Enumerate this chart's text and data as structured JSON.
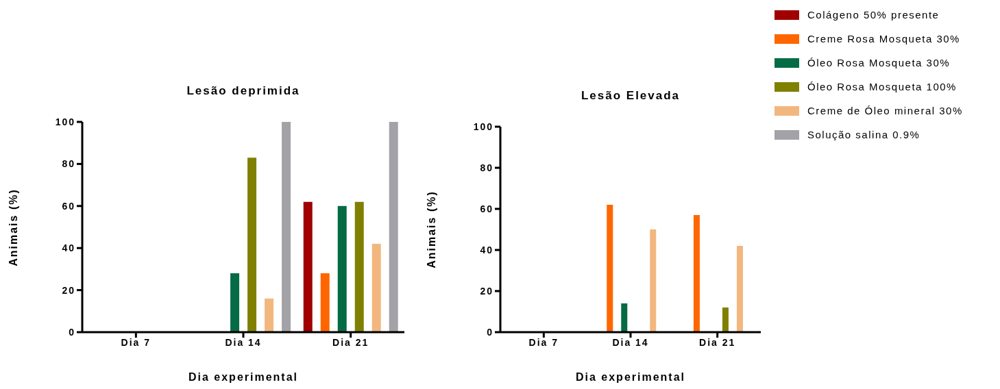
{
  "chart_data": [
    {
      "type": "bar",
      "title": "Lesão deprimida",
      "xlabel": "Dia experimental",
      "ylabel": "Animais (%)",
      "categories": [
        "Dia 7",
        "Dia 14",
        "Dia 21"
      ],
      "ylim": [
        0,
        100
      ],
      "yticks": [
        0,
        20,
        40,
        60,
        80,
        100
      ],
      "grid": false,
      "legend": false,
      "series": [
        {
          "color": "#a00000",
          "values": [
            0,
            0,
            62
          ]
        },
        {
          "color": "#ff6600",
          "values": [
            0,
            0,
            28
          ]
        },
        {
          "color": "#056b45",
          "values": [
            0,
            28,
            60
          ]
        },
        {
          "color": "#808000",
          "values": [
            0,
            83,
            62
          ]
        },
        {
          "color": "#f2b77f",
          "values": [
            0,
            16,
            42
          ]
        },
        {
          "color": "#a3a2a7",
          "values": [
            0,
            100,
            100
          ]
        }
      ]
    },
    {
      "type": "bar",
      "title": "Lesão Elevada",
      "xlabel": "Dia experimental",
      "ylabel": "Animais (%)",
      "categories": [
        "Dia 7",
        "Dia 14",
        "Dia 21"
      ],
      "ylim": [
        0,
        100
      ],
      "yticks": [
        0,
        20,
        40,
        60,
        80,
        100
      ],
      "grid": false,
      "legend": "top right",
      "series": [
        {
          "name": "Colágeno 50% presente",
          "color": "#a00000",
          "values": [
            0,
            0,
            0
          ]
        },
        {
          "name": "Creme Rosa Mosqueta 30%",
          "color": "#ff6600",
          "values": [
            0,
            62,
            57
          ]
        },
        {
          "name": "Óleo Rosa Mosqueta 30%",
          "color": "#056b45",
          "values": [
            0,
            14,
            0
          ]
        },
        {
          "name": "Óleo Rosa Mosqueta 100%",
          "color": "#808000",
          "values": [
            0,
            0,
            12
          ]
        },
        {
          "name": "Creme de Óleo mineral 30%",
          "color": "#f2b77f",
          "values": [
            0,
            50,
            42
          ]
        },
        {
          "name": "Solução salina 0.9%",
          "color": "#a3a2a7",
          "values": [
            0,
            0,
            0
          ]
        }
      ]
    }
  ]
}
